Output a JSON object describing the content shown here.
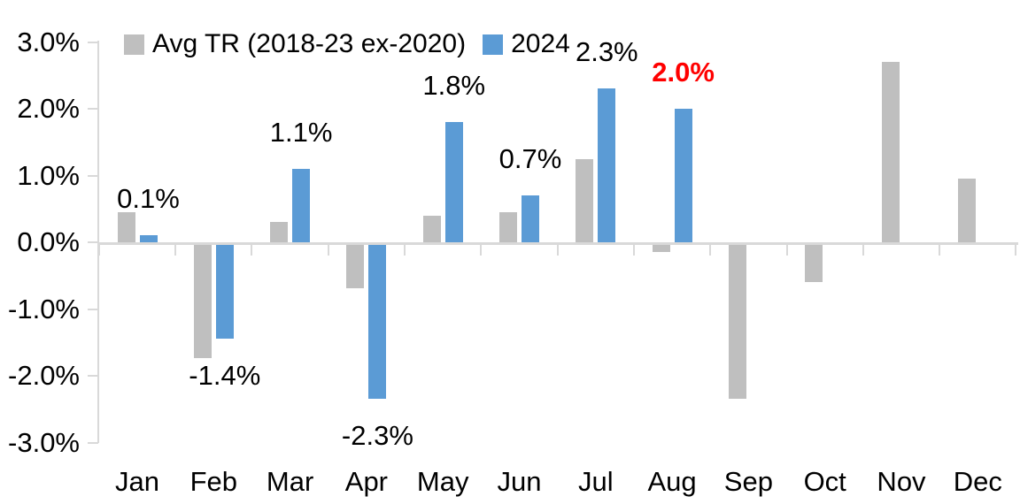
{
  "chart_data": {
    "type": "bar",
    "title": "",
    "categories": [
      "Jan",
      "Feb",
      "Mar",
      "Apr",
      "May",
      "Jun",
      "Jul",
      "Aug",
      "Sep",
      "Oct",
      "Nov",
      "Dec"
    ],
    "series": [
      {
        "name": "Avg TR (2018-23 ex-2020)",
        "color": "#BFBFBF",
        "values": [
          0.45,
          -1.7,
          0.3,
          -0.65,
          0.4,
          0.45,
          1.25,
          -0.1,
          -2.3,
          -0.55,
          2.7,
          0.95
        ]
      },
      {
        "name": "2024",
        "color": "#5B9BD5",
        "values": [
          0.1,
          -1.4,
          1.1,
          -2.3,
          1.8,
          0.7,
          2.3,
          2.0,
          null,
          null,
          null,
          null
        ]
      }
    ],
    "data_labels": [
      {
        "category": "Jan",
        "series": "2024",
        "text": "0.1%",
        "color": "#000000",
        "bold": false
      },
      {
        "category": "Feb",
        "series": "2024",
        "text": "-1.4%",
        "color": "#000000",
        "bold": false
      },
      {
        "category": "Mar",
        "series": "2024",
        "text": "1.1%",
        "color": "#000000",
        "bold": false
      },
      {
        "category": "Apr",
        "series": "2024",
        "text": "-2.3%",
        "color": "#000000",
        "bold": false
      },
      {
        "category": "May",
        "series": "2024",
        "text": "1.8%",
        "color": "#000000",
        "bold": false
      },
      {
        "category": "Jun",
        "series": "2024",
        "text": "0.7%",
        "color": "#000000",
        "bold": false
      },
      {
        "category": "Jul",
        "series": "2024",
        "text": "2.3%",
        "color": "#000000",
        "bold": false
      },
      {
        "category": "Aug",
        "series": "2024",
        "text": "2.0%",
        "color": "#FF0000",
        "bold": true
      }
    ],
    "y_tick_labels": [
      "3.0%",
      "2.0%",
      "1.0%",
      "0.0%",
      "-1.0%",
      "-2.0%",
      "-3.0%"
    ],
    "y_tick_values": [
      3,
      2,
      1,
      0,
      -1,
      -2,
      -3
    ],
    "ylim": [
      -3,
      3
    ],
    "xlabel": "",
    "ylabel": "",
    "legend_position": "top",
    "grid": false,
    "axis_color": "#D9D9D9",
    "text_color": "#000000",
    "highlight_color": "#FF0000"
  }
}
